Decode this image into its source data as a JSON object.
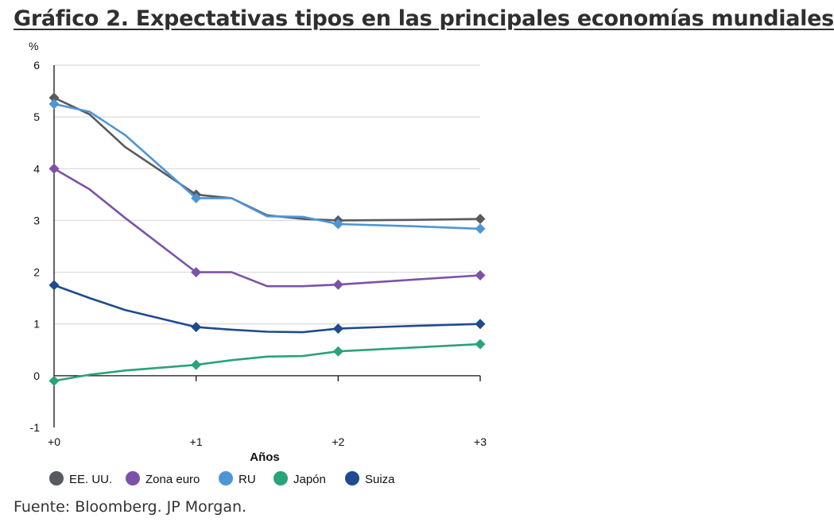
{
  "title": "Gráfico 2. Expectativas tipos en las principales economías mundiales",
  "source": "Fuente: Bloomberg. JP Morgan.",
  "chart_data": {
    "type": "line",
    "unit_label": "%",
    "xlabel": "Años",
    "ylabel": "%",
    "x_ticks": [
      "+0",
      "+1",
      "+2",
      "+3"
    ],
    "y_ticks": [
      "6",
      "5",
      "4",
      "3",
      "2",
      "1",
      "0",
      "-1"
    ],
    "xlim": [
      0,
      3
    ],
    "ylim": [
      -1,
      6
    ],
    "grid": true,
    "legend_position": "bottom",
    "series": [
      {
        "name": "EE. UU.",
        "color": "#595a5e",
        "x": [
          0,
          0.25,
          0.5,
          1,
          1.25,
          1.5,
          1.75,
          2,
          2.5,
          3
        ],
        "y": [
          5.37,
          5.05,
          4.42,
          3.5,
          3.43,
          3.1,
          3.03,
          3.0,
          3.01,
          3.03
        ],
        "markers_x": [
          0,
          1,
          2,
          3
        ]
      },
      {
        "name": "Zona euro",
        "color": "#7c52a8",
        "x": [
          0,
          0.25,
          0.5,
          1,
          1.25,
          1.5,
          1.75,
          2,
          2.5,
          3
        ],
        "y": [
          4.0,
          3.6,
          3.05,
          2.0,
          2.0,
          1.73,
          1.73,
          1.76,
          1.85,
          1.94
        ],
        "markers_x": [
          0,
          1,
          2,
          3
        ]
      },
      {
        "name": "RU",
        "color": "#4e95d6",
        "x": [
          0,
          0.25,
          0.5,
          1,
          1.25,
          1.5,
          1.75,
          2,
          2.5,
          3
        ],
        "y": [
          5.25,
          5.1,
          4.65,
          3.43,
          3.43,
          3.08,
          3.07,
          2.93,
          2.89,
          2.84
        ],
        "markers_x": [
          0,
          1,
          2,
          3
        ]
      },
      {
        "name": "Japón",
        "color": "#2aa378",
        "x": [
          0,
          0.25,
          0.5,
          1,
          1.25,
          1.5,
          1.75,
          2,
          2.5,
          3
        ],
        "y": [
          -0.1,
          0.02,
          0.1,
          0.21,
          0.3,
          0.37,
          0.38,
          0.47,
          0.54,
          0.61
        ],
        "markers_x": [
          0,
          1,
          2,
          3
        ]
      },
      {
        "name": "Suiza",
        "color": "#1f4b8e",
        "x": [
          0,
          0.25,
          0.5,
          1,
          1.25,
          1.5,
          1.75,
          2,
          2.5,
          3
        ],
        "y": [
          1.75,
          1.5,
          1.27,
          0.94,
          0.89,
          0.85,
          0.84,
          0.91,
          0.96,
          1.0
        ],
        "markers_x": [
          0,
          1,
          2,
          3
        ]
      }
    ]
  }
}
